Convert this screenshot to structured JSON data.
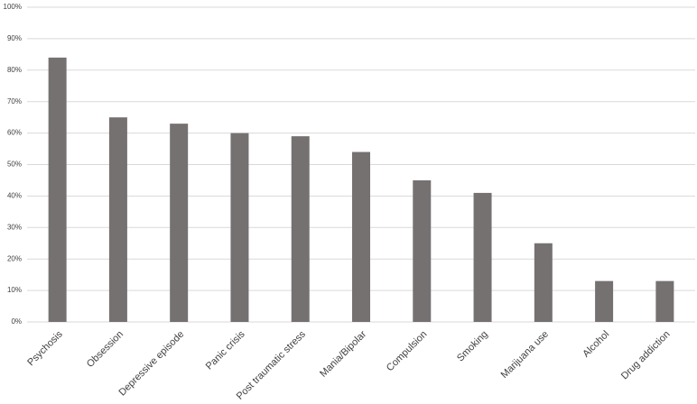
{
  "chart_data": {
    "type": "bar",
    "categories": [
      "Psychosis",
      "Obsession",
      "Depressive episode",
      "Panic crisis",
      "Post traumatic stress",
      "Mania/Bipolar",
      "Compulsion",
      "Smoking",
      "Marijuana use",
      "Alcohol",
      "Drug addiction"
    ],
    "values": [
      84,
      65,
      63,
      60,
      59,
      54,
      45,
      41,
      25,
      13,
      13
    ],
    "color": "#767171",
    "ylim": [
      0,
      100
    ],
    "yticks": [
      {
        "value": 0,
        "label": "0%"
      },
      {
        "value": 10,
        "label": "10%"
      },
      {
        "value": 20,
        "label": "20%"
      },
      {
        "value": 30,
        "label": "30%"
      },
      {
        "value": 40,
        "label": "40%"
      },
      {
        "value": 50,
        "label": "50%"
      },
      {
        "value": 60,
        "label": "60%"
      },
      {
        "value": 70,
        "label": "70%"
      },
      {
        "value": 80,
        "label": "80%"
      },
      {
        "value": 90,
        "label": "90%"
      },
      {
        "value": 100,
        "label": "100%"
      }
    ],
    "grid": true
  }
}
